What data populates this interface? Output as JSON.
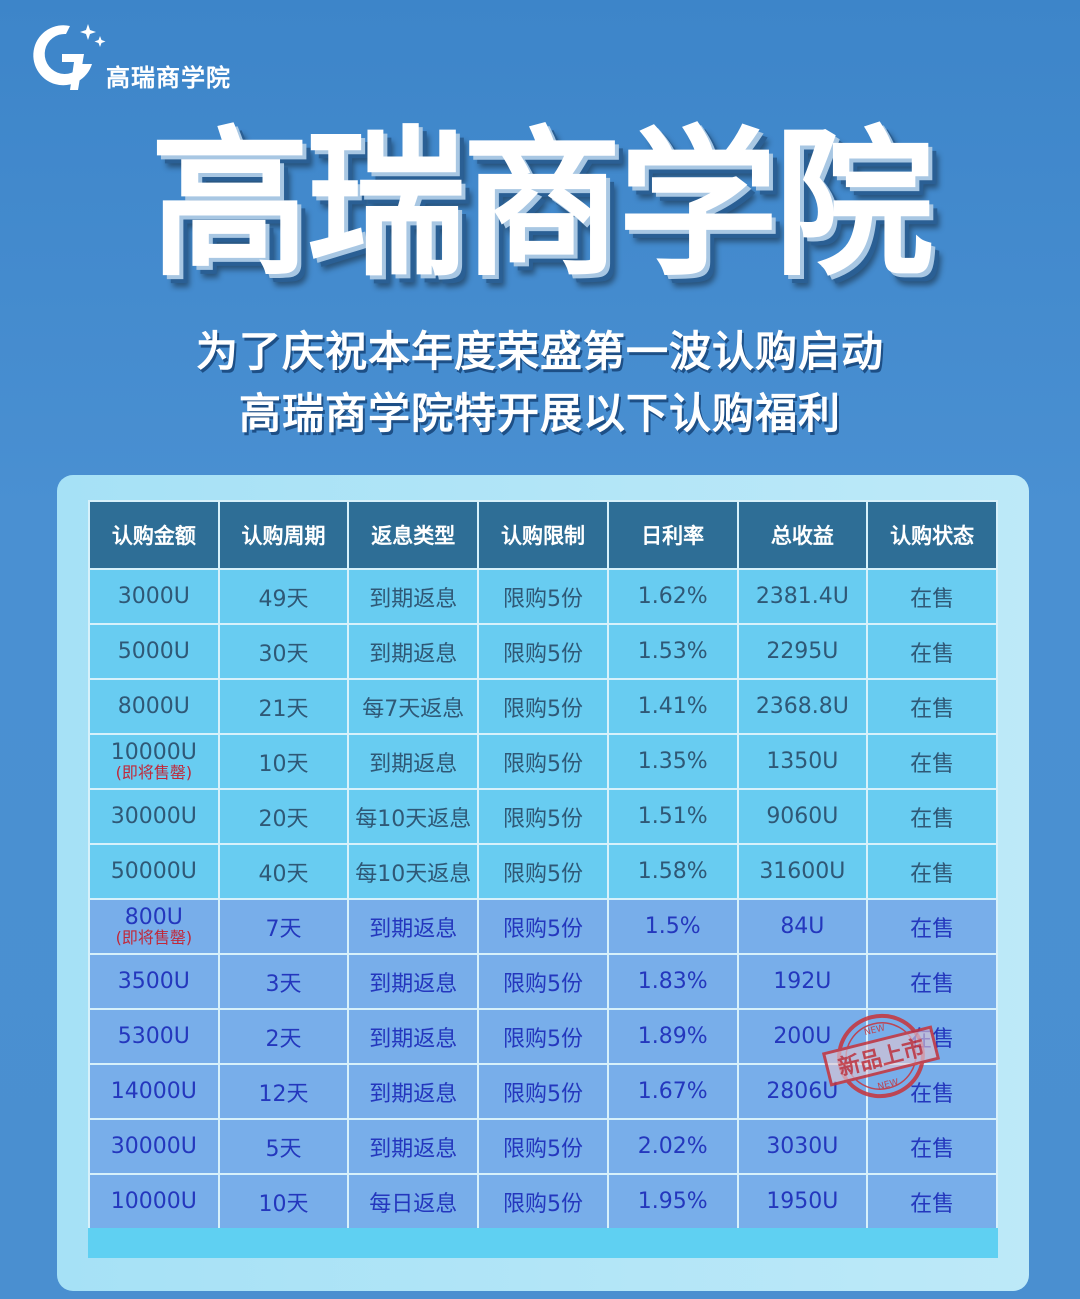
{
  "brand": {
    "logo_text": "高瑞商学院",
    "title": "高瑞商学院"
  },
  "subtitle": {
    "line1": "为了庆祝本年度荣盛第一波认购启动",
    "line2": "高瑞商学院特开展以下认购福利"
  },
  "table": {
    "headers": [
      "认购金额",
      "认购周期",
      "返息类型",
      "认购限制",
      "日利率",
      "总收益",
      "认购状态"
    ],
    "rows": [
      {
        "amount": "3000U",
        "note": "",
        "period": "49天",
        "type": "到期返息",
        "limit": "限购5份",
        "rate": "1.62%",
        "total": "2381.4U",
        "status": "在售"
      },
      {
        "amount": "5000U",
        "note": "",
        "period": "30天",
        "type": "到期返息",
        "limit": "限购5份",
        "rate": "1.53%",
        "total": "2295U",
        "status": "在售"
      },
      {
        "amount": "8000U",
        "note": "",
        "period": "21天",
        "type": "每7天返息",
        "limit": "限购5份",
        "rate": "1.41%",
        "total": "2368.8U",
        "status": "在售"
      },
      {
        "amount": "10000U",
        "note": "(即将售罄)",
        "period": "10天",
        "type": "到期返息",
        "limit": "限购5份",
        "rate": "1.35%",
        "total": "1350U",
        "status": "在售"
      },
      {
        "amount": "30000U",
        "note": "",
        "period": "20天",
        "type": "每10天返息",
        "limit": "限购5份",
        "rate": "1.51%",
        "total": "9060U",
        "status": "在售"
      },
      {
        "amount": "50000U",
        "note": "",
        "period": "40天",
        "type": "每10天返息",
        "limit": "限购5份",
        "rate": "1.58%",
        "total": "31600U",
        "status": "在售"
      },
      {
        "amount": "800U",
        "note": "(即将售罄)",
        "period": "7天",
        "type": "到期返息",
        "limit": "限购5份",
        "rate": "1.5%",
        "total": "84U",
        "status": "在售"
      },
      {
        "amount": "3500U",
        "note": "",
        "period": "3天",
        "type": "到期返息",
        "limit": "限购5份",
        "rate": "1.83%",
        "total": "192U",
        "status": "在售"
      },
      {
        "amount": "5300U",
        "note": "",
        "period": "2天",
        "type": "到期返息",
        "limit": "限购5份",
        "rate": "1.89%",
        "total": "200U",
        "status": "在售"
      },
      {
        "amount": "14000U",
        "note": "",
        "period": "12天",
        "type": "到期返息",
        "limit": "限购5份",
        "rate": "1.67%",
        "total": "2806U",
        "status": "在售"
      },
      {
        "amount": "30000U",
        "note": "",
        "period": "5天",
        "type": "到期返息",
        "limit": "限购5份",
        "rate": "2.02%",
        "total": "3030U",
        "status": "在售"
      },
      {
        "amount": "10000U",
        "note": "",
        "period": "10天",
        "type": "每日返息",
        "limit": "限购5份",
        "rate": "1.95%",
        "total": "1950U",
        "status": "在售"
      }
    ]
  },
  "stamp": {
    "text": "新品上市",
    "small": "NEW"
  },
  "colors": {
    "header_bg": "#2e6e96",
    "row_cyan": "#68ccf1",
    "row_blue": "#78aeea",
    "note_red": "#c0283a"
  }
}
